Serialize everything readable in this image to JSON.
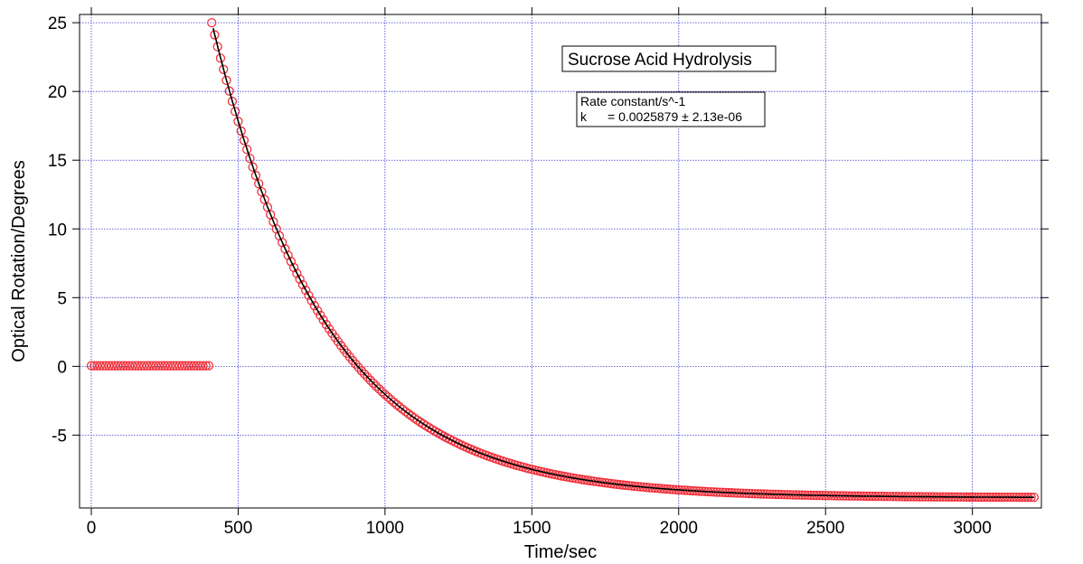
{
  "chart_data": {
    "type": "scatter",
    "title": "Sucrose Acid Hydrolysis",
    "xlabel": "Time/sec",
    "ylabel": "Optical Rotation/Degrees",
    "xlim": [
      -40,
      3235
    ],
    "ylim": [
      -10.3,
      25.6
    ],
    "xticks": [
      0,
      500,
      1000,
      1500,
      2000,
      2500,
      3000
    ],
    "yticks": [
      -5,
      0,
      5,
      10,
      15,
      20,
      25
    ],
    "grid": true,
    "fit_info": {
      "line1": "Rate constant/s^-1",
      "line2_name": "k",
      "line2_value": "= 0.0025879 ± 2.13e-06"
    },
    "series": [
      {
        "kind": "baseline_points",
        "marker": "open-circle",
        "color": "#f0323c",
        "x_start": 0,
        "x_end": 400,
        "step": 10,
        "y": 0.05
      },
      {
        "kind": "decay_points",
        "marker": "open-circle",
        "color": "#f0323c",
        "x_start": 410,
        "x_end": 3210,
        "step": 10,
        "y_start": 25.0,
        "y_infinity": -9.55,
        "k": 0.0025879
      },
      {
        "kind": "fit_line",
        "color": "#000000",
        "x_start": 415,
        "x_end": 3210,
        "y_start": 24.6,
        "y_infinity": -9.55,
        "k": 0.0025879
      }
    ]
  },
  "colors": {
    "grid": "#3a3ad6",
    "marker": "#f0323c",
    "fit": "#000000"
  }
}
